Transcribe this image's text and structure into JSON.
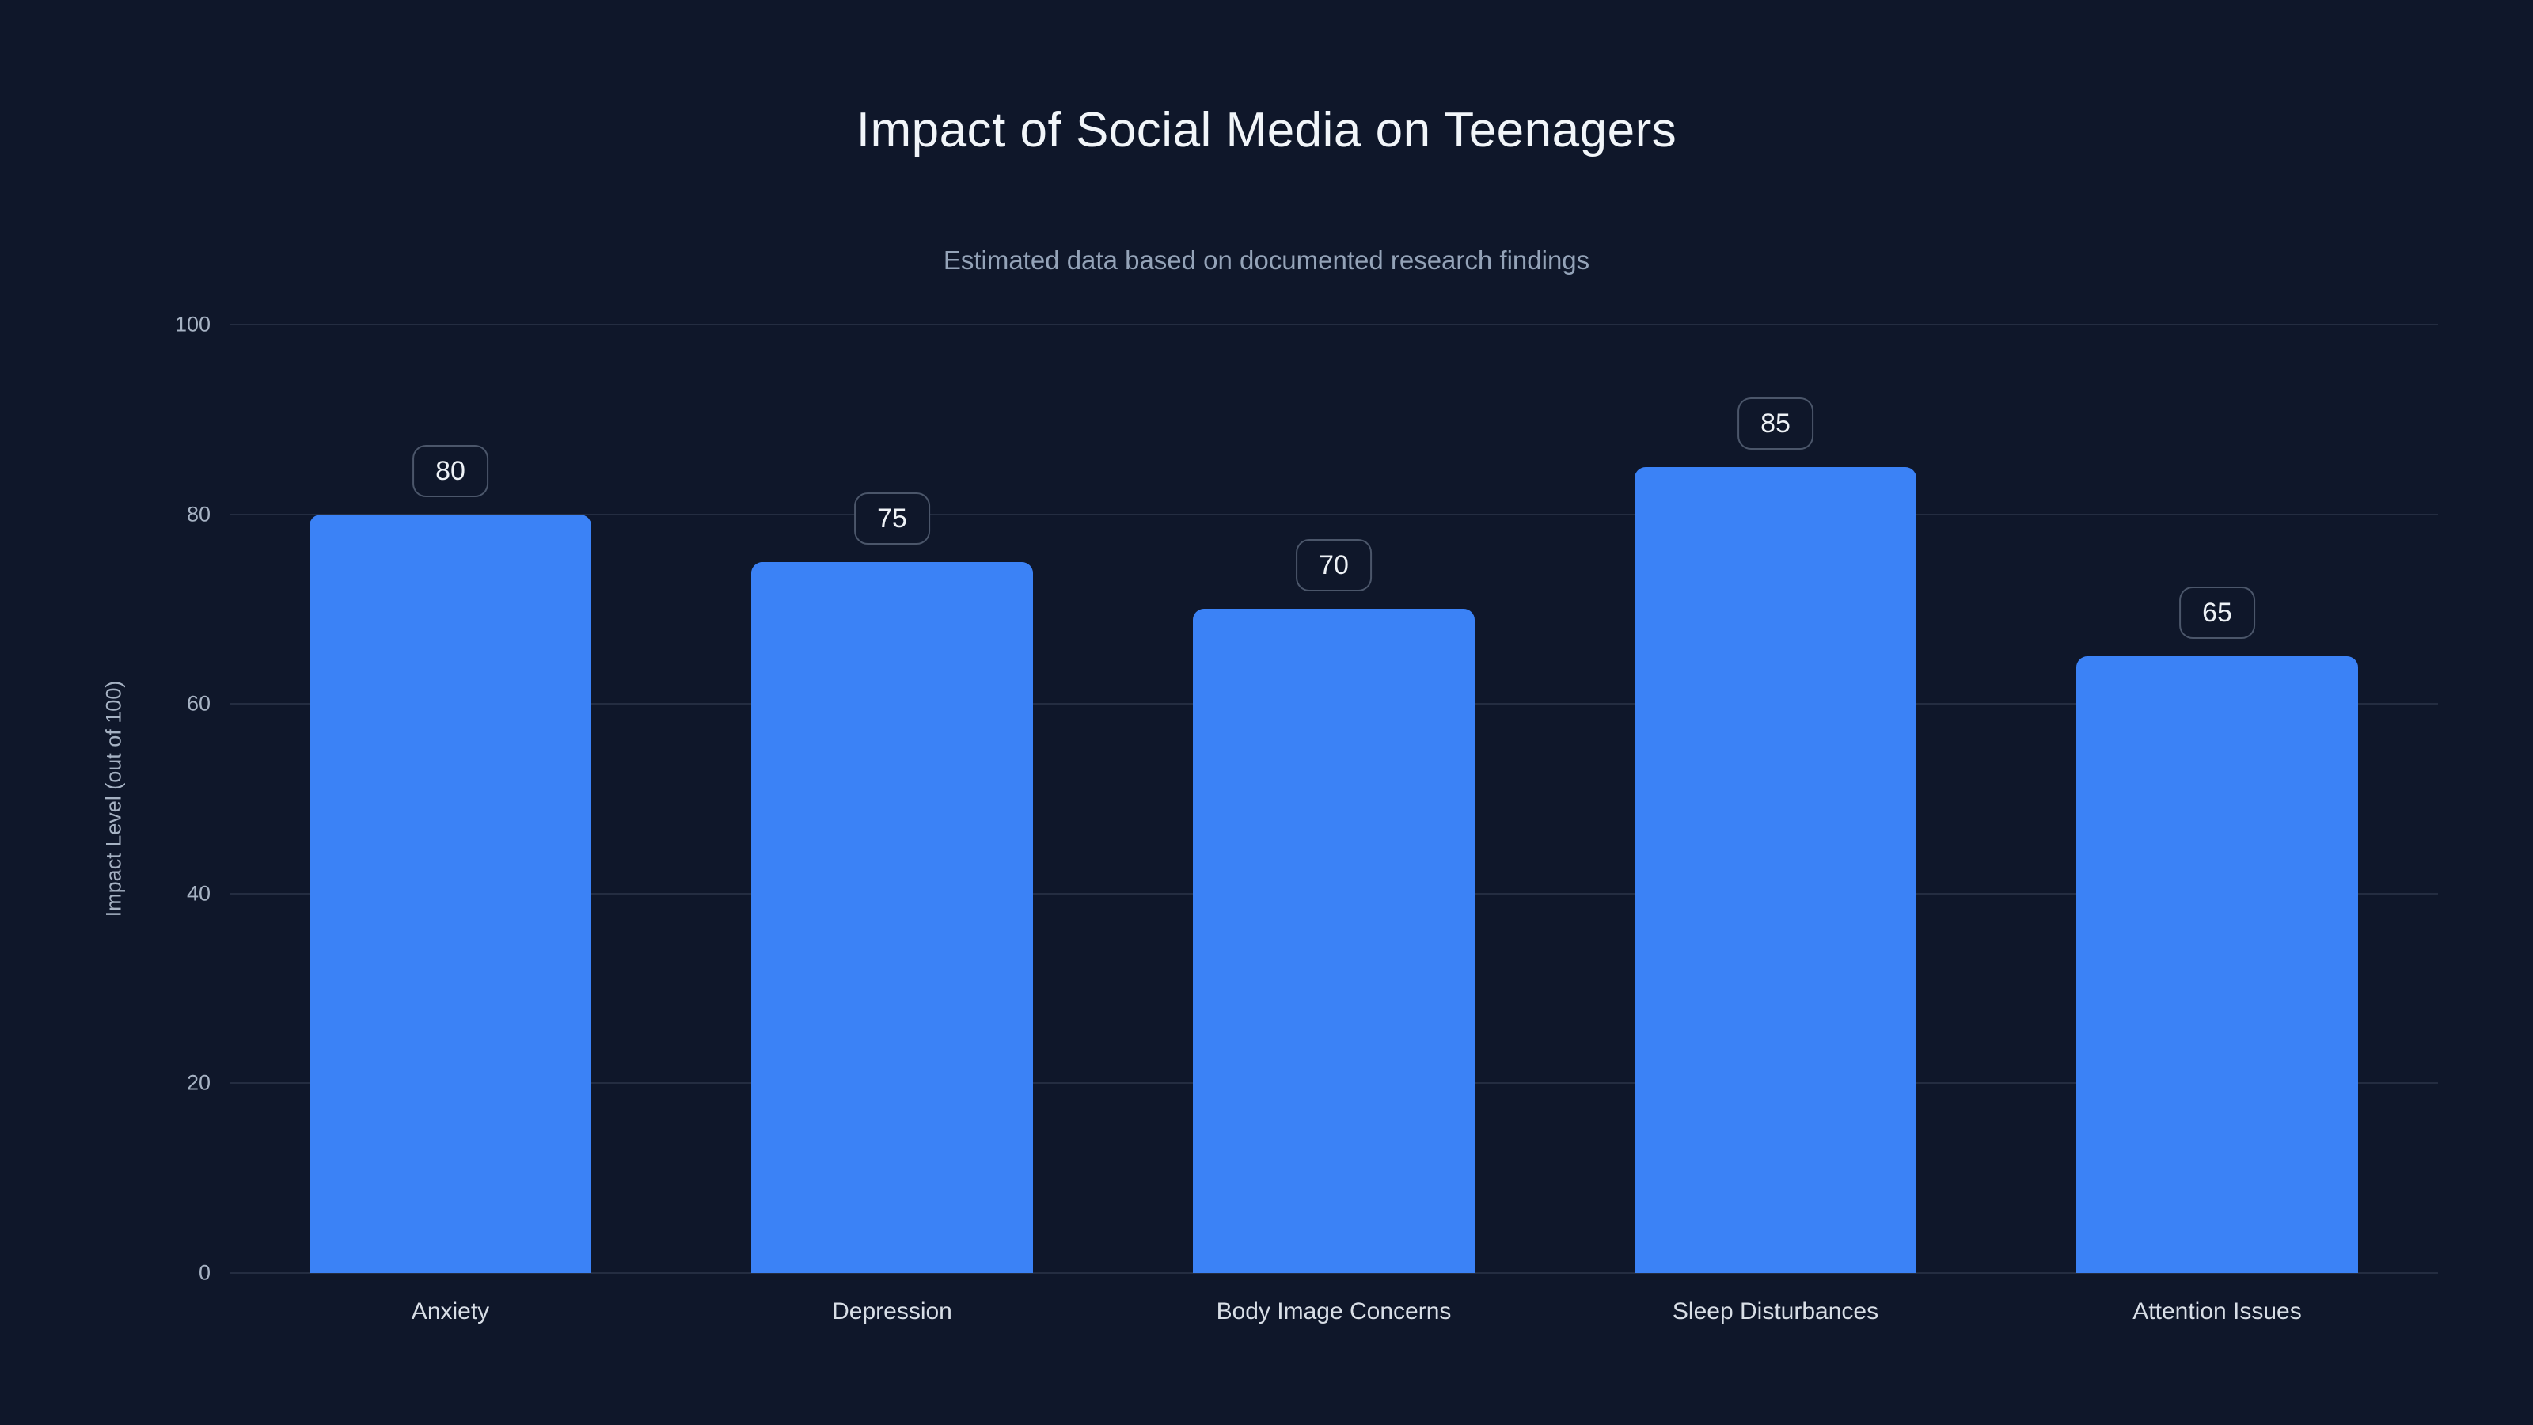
{
  "chart_data": {
    "type": "bar",
    "title": "Impact of Social Media on Teenagers",
    "subtitle": "Estimated data based on documented research findings",
    "categories": [
      "Anxiety",
      "Depression",
      "Body Image Concerns",
      "Sleep Disturbances",
      "Attention Issues"
    ],
    "values": [
      80,
      75,
      70,
      85,
      65
    ],
    "value_labels": [
      "80",
      "75",
      "70",
      "85",
      "65"
    ],
    "xlabel": "",
    "ylabel": "Impact Level (out of 100)",
    "ylim": [
      0,
      100
    ],
    "yticks": [
      0,
      20,
      40,
      60,
      80,
      100
    ],
    "grid": true,
    "legend_position": "none",
    "colors": {
      "background": "#0f172a",
      "bar": "#3b82f6",
      "title_text": "#f1f5f9",
      "subtitle_text": "#94a3b8",
      "tick_text": "#a6b2c3",
      "category_text": "#d8dee6",
      "gridline": "rgba(148,163,184,0.16)",
      "badge_border": "rgba(148,163,184,0.45)",
      "badge_text": "#eef2f6"
    }
  }
}
